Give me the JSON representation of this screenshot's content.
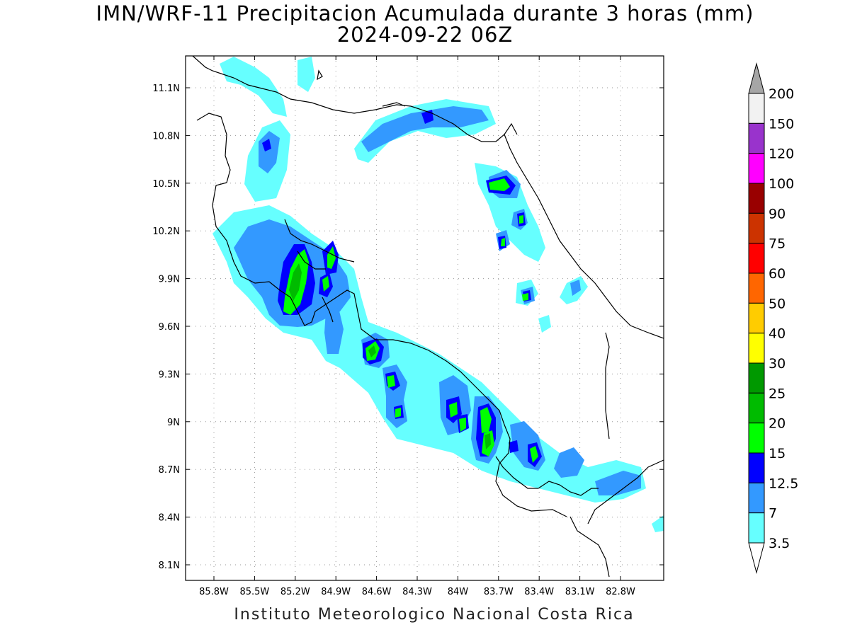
{
  "title": "IMN/WRF-11 Precipitacion Acumulada durante 3 horas (mm)",
  "subtitle": "2024-09-22 06Z",
  "footer": "Instituto Meteorologico Nacional Costa Rica",
  "axes": {
    "lon_ticks": [
      "85.8W",
      "85.5W",
      "85.2W",
      "84.9W",
      "84.6W",
      "84.3W",
      "84W",
      "83.7W",
      "83.4W",
      "83.1W",
      "82.8W"
    ],
    "lat_ticks": [
      "11.1N",
      "10.8N",
      "10.5N",
      "10.2N",
      "9.9N",
      "9.6N",
      "9.3N",
      "9N",
      "8.7N",
      "8.4N",
      "8.1N"
    ]
  },
  "colorbar": {
    "labels": [
      "200",
      "150",
      "120",
      "100",
      "90",
      "75",
      "60",
      "50",
      "40",
      "30",
      "25",
      "20",
      "15",
      "12.5",
      "7",
      "3.5"
    ],
    "colors": [
      "#f2f2f2",
      "#9933cc",
      "#ff00ff",
      "#990000",
      "#cc3300",
      "#ff0000",
      "#ff6600",
      "#ffcc00",
      "#ffff00",
      "#009900",
      "#00bb00",
      "#00ff00",
      "#0000ff",
      "#3399ff",
      "#66ffff"
    ],
    "top_arrow_color": "#a6a6a6",
    "bottom_arrow_color": "#ffffff"
  },
  "precip_colors": {
    "c3_5": "#66ffff",
    "c7": "#3399ff",
    "c12_5": "#0000ff",
    "c15": "#00ff00",
    "c20": "#00bb00"
  }
}
